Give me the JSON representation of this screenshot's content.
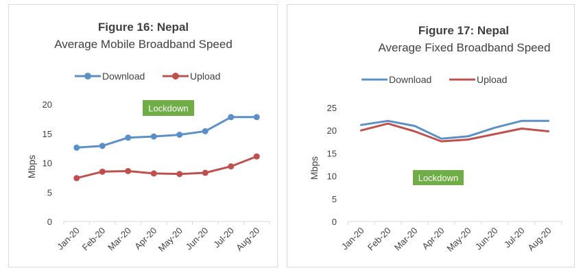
{
  "chart_data": [
    {
      "type": "line",
      "title": "Figure 16: Nepal",
      "subtitle": "Average Mobile Broadband Speed",
      "ylabel": "Mbps",
      "xlabel": "",
      "ylim": [
        0,
        20
      ],
      "yticks": [
        "0",
        "5",
        "10",
        "15",
        "20"
      ],
      "categories": [
        "Jan-20",
        "Feb-20",
        "Mar-20",
        "Apr-20",
        "May-20",
        "Jun-20",
        "Jul-20",
        "Aug-20"
      ],
      "markers": true,
      "grid": false,
      "legend_position": "top",
      "annotation": "Lockdown",
      "series": [
        {
          "name": "Download",
          "color": "#5b8fc7",
          "values": [
            12.6,
            12.9,
            14.3,
            14.5,
            14.8,
            15.4,
            17.8,
            17.8
          ]
        },
        {
          "name": "Upload",
          "color": "#c0504d",
          "values": [
            7.4,
            8.5,
            8.6,
            8.2,
            8.1,
            8.3,
            9.4,
            11.1
          ]
        }
      ]
    },
    {
      "type": "line",
      "title": "Figure 17: Nepal",
      "subtitle": "Average Fixed Broadband Speed",
      "ylabel": "Mbps",
      "xlabel": "",
      "ylim": [
        0,
        25
      ],
      "yticks": [
        "0",
        "5",
        "10",
        "15",
        "20",
        "25"
      ],
      "categories": [
        "Jan-20",
        "Feb-20",
        "Mar-20",
        "Apr-20",
        "May-20",
        "Jun-20",
        "Jul-20",
        "Aug-20"
      ],
      "markers": false,
      "grid": false,
      "legend_position": "top",
      "annotation": "Lockdown",
      "series": [
        {
          "name": "Download",
          "color": "#5b8fc7",
          "values": [
            21.2,
            22.1,
            21.0,
            18.2,
            18.7,
            20.6,
            22.1,
            22.1
          ]
        },
        {
          "name": "Upload",
          "color": "#c0504d",
          "values": [
            20.0,
            21.5,
            19.8,
            17.6,
            18.0,
            19.2,
            20.4,
            19.8
          ]
        }
      ]
    }
  ],
  "colors": {
    "download": "#5b8fc7",
    "upload": "#c0504d",
    "lockdown_badge": "#70ad47",
    "axis": "#d9d9d9",
    "text": "#404040"
  }
}
